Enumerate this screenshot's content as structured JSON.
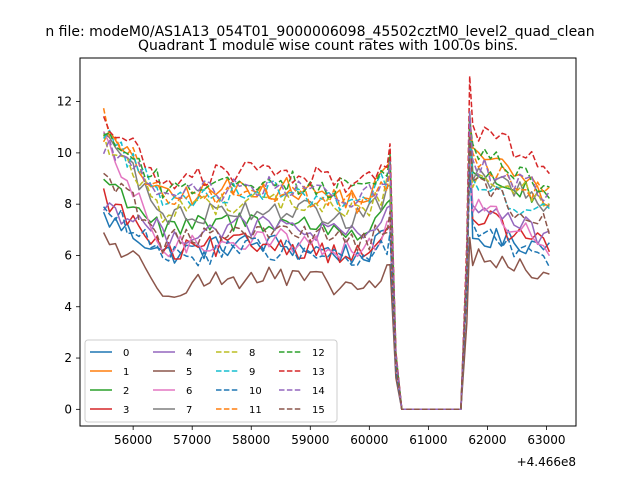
{
  "figure": {
    "suptitle": "n file: modeM0/AS1A13_054T01_9000006098_45502cztM0_level2_quad_clean",
    "title": "Quadrant 1 module wise count rates with 100.0s bins.",
    "offset_label": "+4.466e8"
  },
  "chart_data": {
    "type": "line",
    "title": "Quadrant 1 module wise count rates with 100.0s bins.",
    "xlabel": "",
    "ylabel": "",
    "x_offset": 446600000,
    "xlim": [
      55100,
      63500
    ],
    "ylim": [
      -0.65,
      13.7
    ],
    "xticks": [
      56000,
      57000,
      58000,
      59000,
      60000,
      61000,
      62000,
      63000
    ],
    "yticks": [
      0,
      2,
      4,
      6,
      8,
      10,
      12
    ],
    "grid": false,
    "legend": {
      "location": "lower-left",
      "columns": 4
    },
    "gap": {
      "drop_start": 60350,
      "zero_start": 60550,
      "zero_end": 61550,
      "rise_end": 61750
    },
    "series": [
      {
        "name": "0",
        "color": "#1f77b4",
        "dash": "solid",
        "level1": 6.2,
        "start": 7.5,
        "peak": 10.6,
        "level2": 6.7,
        "end": 6.4
      },
      {
        "name": "1",
        "color": "#ff7f0e",
        "dash": "solid",
        "level1": 8.4,
        "start": 10.8,
        "peak": 11.4,
        "level2": 10.3,
        "end": 8.2
      },
      {
        "name": "2",
        "color": "#2ca02c",
        "dash": "solid",
        "level1": 7.1,
        "start": 9.0,
        "peak": 11.6,
        "level2": 9.4,
        "end": 8.0
      },
      {
        "name": "3",
        "color": "#d62728",
        "dash": "solid",
        "level1": 6.2,
        "start": 8.3,
        "peak": 9.9,
        "level2": 7.6,
        "end": 6.3
      },
      {
        "name": "4",
        "color": "#9467bd",
        "dash": "solid",
        "level1": 6.9,
        "start": 8.0,
        "peak": 10.2,
        "level2": 8.2,
        "end": 6.6
      },
      {
        "name": "5",
        "color": "#8c564b",
        "dash": "solid",
        "level1": 4.9,
        "start": 6.8,
        "peak": 6.7,
        "level2": 5.9,
        "end": 5.3
      },
      {
        "name": "6",
        "color": "#e377c2",
        "dash": "solid",
        "level1": 6.4,
        "start": 10.4,
        "peak": 10.1,
        "level2": 8.0,
        "end": 6.4
      },
      {
        "name": "7",
        "color": "#7f7f7f",
        "dash": "solid",
        "level1": 7.6,
        "start": 10.9,
        "peak": 11.4,
        "level2": 9.3,
        "end": 7.9
      },
      {
        "name": "8",
        "color": "#bcbd22",
        "dash": "dashed",
        "level1": 7.9,
        "start": 10.5,
        "peak": 10.8,
        "level2": 9.1,
        "end": 8.3
      },
      {
        "name": "9",
        "color": "#17becf",
        "dash": "dashed",
        "level1": 8.3,
        "start": 10.9,
        "peak": 10.7,
        "level2": 8.6,
        "end": 7.6
      },
      {
        "name": "10",
        "color": "#1f77b4",
        "dash": "dashed",
        "level1": 6.0,
        "start": 7.9,
        "peak": 9.4,
        "level2": 6.9,
        "end": 5.7
      },
      {
        "name": "11",
        "color": "#ff7f0e",
        "dash": "dashed",
        "level1": 8.2,
        "start": 11.4,
        "peak": 10.9,
        "level2": 9.7,
        "end": 8.3
      },
      {
        "name": "12",
        "color": "#2ca02c",
        "dash": "dashed",
        "level1": 8.7,
        "start": 10.9,
        "peak": 11.2,
        "level2": 10.1,
        "end": 8.7
      },
      {
        "name": "13",
        "color": "#d62728",
        "dash": "dashed",
        "level1": 9.0,
        "start": 11.3,
        "peak": 13.0,
        "level2": 10.9,
        "end": 9.6
      },
      {
        "name": "14",
        "color": "#9467bd",
        "dash": "dashed",
        "level1": 8.4,
        "start": 10.4,
        "peak": 11.6,
        "level2": 9.6,
        "end": 8.4
      },
      {
        "name": "15",
        "color": "#8c564b",
        "dash": "dashed",
        "level1": 6.7,
        "start": 9.3,
        "peak": 10.6,
        "level2": 8.8,
        "end": 7.1
      }
    ]
  }
}
